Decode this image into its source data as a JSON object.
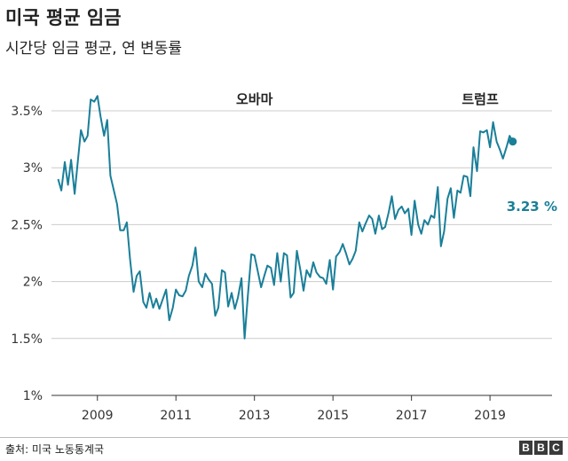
{
  "chart_data": {
    "type": "line",
    "title": "미국 평균 임금",
    "subtitle": "시간당 임금 평균, 연 변동률",
    "ylim": [
      1,
      3.5
    ],
    "y_ticks": [
      1,
      1.5,
      2,
      2.5,
      3,
      3.5
    ],
    "y_tick_labels": [
      "1%",
      "1.5%",
      "2%",
      "2.5%",
      "3%",
      "3.5%"
    ],
    "x_ticks": [
      2009,
      2011,
      2013,
      2015,
      2017,
      2019
    ],
    "x_tick_labels": [
      "2009",
      "2011",
      "2013",
      "2015",
      "2017",
      "2019"
    ],
    "xlim": [
      2007.83,
      2020.58
    ],
    "grid": "horizontal",
    "line_color": "#1a7f99",
    "series": [
      {
        "values": [
          [
            2008.0,
            2.9
          ],
          [
            2008.08,
            2.8
          ],
          [
            2008.17,
            3.05
          ],
          [
            2008.25,
            2.85
          ],
          [
            2008.33,
            3.07
          ],
          [
            2008.42,
            2.77
          ],
          [
            2008.5,
            3.05
          ],
          [
            2008.58,
            3.33
          ],
          [
            2008.67,
            3.23
          ],
          [
            2008.75,
            3.28
          ],
          [
            2008.83,
            3.6
          ],
          [
            2008.92,
            3.58
          ],
          [
            2009.0,
            3.63
          ],
          [
            2009.08,
            3.45
          ],
          [
            2009.17,
            3.28
          ],
          [
            2009.25,
            3.42
          ],
          [
            2009.33,
            2.93
          ],
          [
            2009.42,
            2.8
          ],
          [
            2009.5,
            2.68
          ],
          [
            2009.58,
            2.45
          ],
          [
            2009.67,
            2.45
          ],
          [
            2009.75,
            2.52
          ],
          [
            2009.83,
            2.2
          ],
          [
            2009.92,
            1.91
          ],
          [
            2010.0,
            2.05
          ],
          [
            2010.08,
            2.09
          ],
          [
            2010.17,
            1.82
          ],
          [
            2010.25,
            1.77
          ],
          [
            2010.33,
            1.9
          ],
          [
            2010.42,
            1.77
          ],
          [
            2010.5,
            1.85
          ],
          [
            2010.58,
            1.76
          ],
          [
            2010.67,
            1.85
          ],
          [
            2010.75,
            1.93
          ],
          [
            2010.83,
            1.66
          ],
          [
            2010.92,
            1.77
          ],
          [
            2011.0,
            1.93
          ],
          [
            2011.08,
            1.88
          ],
          [
            2011.17,
            1.87
          ],
          [
            2011.25,
            1.92
          ],
          [
            2011.33,
            2.05
          ],
          [
            2011.42,
            2.14
          ],
          [
            2011.5,
            2.3
          ],
          [
            2011.58,
            2.0
          ],
          [
            2011.67,
            1.95
          ],
          [
            2011.75,
            2.07
          ],
          [
            2011.83,
            2.02
          ],
          [
            2011.92,
            1.98
          ],
          [
            2012.0,
            1.7
          ],
          [
            2012.08,
            1.77
          ],
          [
            2012.17,
            2.1
          ],
          [
            2012.25,
            2.08
          ],
          [
            2012.33,
            1.78
          ],
          [
            2012.42,
            1.9
          ],
          [
            2012.5,
            1.76
          ],
          [
            2012.58,
            1.86
          ],
          [
            2012.67,
            2.03
          ],
          [
            2012.75,
            1.5
          ],
          [
            2012.83,
            1.87
          ],
          [
            2012.92,
            2.24
          ],
          [
            2013.0,
            2.23
          ],
          [
            2013.08,
            2.1
          ],
          [
            2013.17,
            1.95
          ],
          [
            2013.25,
            2.05
          ],
          [
            2013.33,
            2.14
          ],
          [
            2013.42,
            2.12
          ],
          [
            2013.5,
            1.97
          ],
          [
            2013.58,
            2.25
          ],
          [
            2013.67,
            2.0
          ],
          [
            2013.75,
            2.25
          ],
          [
            2013.83,
            2.23
          ],
          [
            2013.92,
            1.86
          ],
          [
            2014.0,
            1.9
          ],
          [
            2014.08,
            2.27
          ],
          [
            2014.17,
            2.1
          ],
          [
            2014.25,
            1.92
          ],
          [
            2014.33,
            2.1
          ],
          [
            2014.42,
            2.04
          ],
          [
            2014.5,
            2.17
          ],
          [
            2014.58,
            2.08
          ],
          [
            2014.67,
            2.04
          ],
          [
            2014.75,
            2.03
          ],
          [
            2014.83,
            1.98
          ],
          [
            2014.92,
            2.19
          ],
          [
            2015.0,
            1.93
          ],
          [
            2015.08,
            2.22
          ],
          [
            2015.17,
            2.26
          ],
          [
            2015.25,
            2.33
          ],
          [
            2015.33,
            2.25
          ],
          [
            2015.42,
            2.15
          ],
          [
            2015.5,
            2.2
          ],
          [
            2015.58,
            2.27
          ],
          [
            2015.67,
            2.52
          ],
          [
            2015.75,
            2.44
          ],
          [
            2015.83,
            2.51
          ],
          [
            2015.92,
            2.58
          ],
          [
            2016.0,
            2.55
          ],
          [
            2016.08,
            2.42
          ],
          [
            2016.17,
            2.58
          ],
          [
            2016.25,
            2.46
          ],
          [
            2016.33,
            2.48
          ],
          [
            2016.42,
            2.61
          ],
          [
            2016.5,
            2.75
          ],
          [
            2016.58,
            2.55
          ],
          [
            2016.67,
            2.63
          ],
          [
            2016.75,
            2.66
          ],
          [
            2016.83,
            2.6
          ],
          [
            2016.92,
            2.64
          ],
          [
            2017.0,
            2.41
          ],
          [
            2017.08,
            2.71
          ],
          [
            2017.17,
            2.5
          ],
          [
            2017.25,
            2.42
          ],
          [
            2017.33,
            2.54
          ],
          [
            2017.42,
            2.5
          ],
          [
            2017.5,
            2.58
          ],
          [
            2017.58,
            2.56
          ],
          [
            2017.67,
            2.83
          ],
          [
            2017.75,
            2.31
          ],
          [
            2017.83,
            2.44
          ],
          [
            2017.92,
            2.73
          ],
          [
            2018.0,
            2.82
          ],
          [
            2018.08,
            2.56
          ],
          [
            2018.17,
            2.8
          ],
          [
            2018.25,
            2.78
          ],
          [
            2018.33,
            2.93
          ],
          [
            2018.42,
            2.92
          ],
          [
            2018.5,
            2.75
          ],
          [
            2018.58,
            3.18
          ],
          [
            2018.67,
            2.97
          ],
          [
            2018.75,
            3.32
          ],
          [
            2018.83,
            3.31
          ],
          [
            2018.92,
            3.33
          ],
          [
            2019.0,
            3.18
          ],
          [
            2019.08,
            3.4
          ],
          [
            2019.17,
            3.23
          ],
          [
            2019.25,
            3.16
          ],
          [
            2019.33,
            3.08
          ],
          [
            2019.42,
            3.18
          ],
          [
            2019.5,
            3.28
          ],
          [
            2019.58,
            3.23
          ]
        ]
      }
    ],
    "annotations": [
      {
        "text": "오바마",
        "x": 2013.0,
        "y": 3.6
      },
      {
        "text": "트럼프",
        "x": 2018.75,
        "y": 3.6
      }
    ],
    "end_label": "3.23 %"
  },
  "footer": {
    "source": "출처: 미국 노동통계국",
    "logo_letters": [
      "B",
      "B",
      "C"
    ]
  }
}
